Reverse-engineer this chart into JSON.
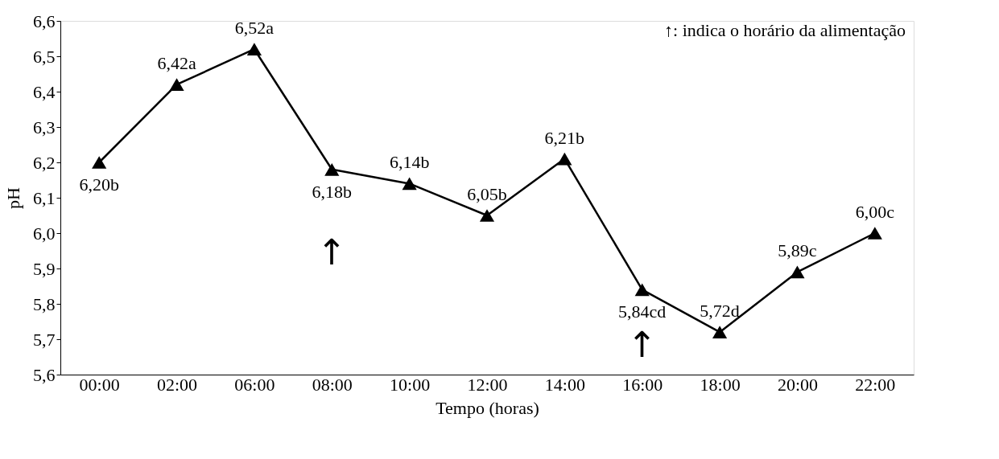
{
  "chart_data": {
    "type": "line",
    "xlabel": "Tempo (horas)",
    "ylabel": "pH",
    "categories": [
      "00:00",
      "02:00",
      "06:00",
      "08:00",
      "10:00",
      "12:00",
      "14:00",
      "16:00",
      "18:00",
      "20:00",
      "22:00"
    ],
    "series": [
      {
        "color": "#000000",
        "values": [
          6.2,
          6.42,
          6.52,
          6.18,
          6.14,
          6.05,
          6.21,
          5.84,
          5.72,
          5.89,
          6.0
        ],
        "value_labels": [
          "6,20b",
          "6,42a",
          "6,52a",
          "6,18b",
          "6,14b",
          "6,05b",
          "6,21b",
          "5,84cd",
          "5,72d",
          "5,89c",
          "6,00c"
        ]
      }
    ],
    "ylim": [
      5.6,
      6.6
    ],
    "yticks": [
      {
        "value": 5.6,
        "label": "5,6"
      },
      {
        "value": 5.7,
        "label": "5,7"
      },
      {
        "value": 5.8,
        "label": "5,8"
      },
      {
        "value": 5.9,
        "label": "5,9"
      },
      {
        "value": 6.0,
        "label": "6,0"
      },
      {
        "value": 6.1,
        "label": "6,1"
      },
      {
        "value": 6.2,
        "label": "6,2"
      },
      {
        "value": 6.3,
        "label": "6,3"
      },
      {
        "value": 6.4,
        "label": "6,4"
      },
      {
        "value": 6.5,
        "label": "6,5"
      },
      {
        "value": 6.6,
        "label": "6,6"
      }
    ],
    "annotations": [
      "↑",
      "↑",
      "↑: indica o horário da alimentação"
    ],
    "marker": "triangle",
    "line_style": "solid",
    "grid": false
  }
}
